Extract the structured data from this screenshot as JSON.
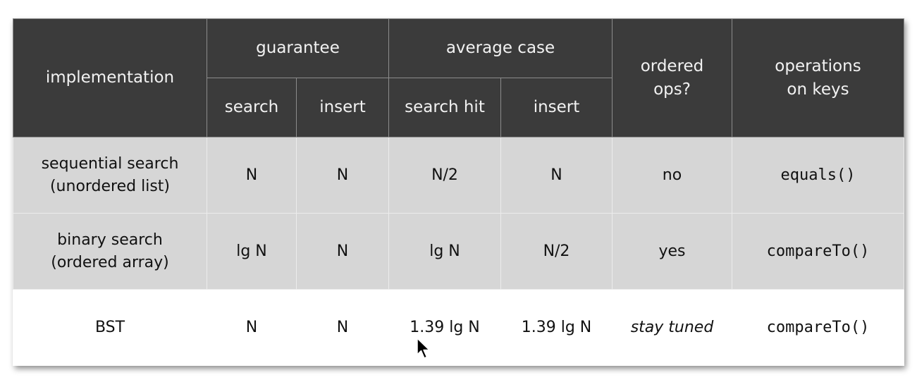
{
  "table": {
    "header": {
      "implementation": "implementation",
      "guarantee": "guarantee",
      "average_case": "average case",
      "ordered_ops": [
        "ordered",
        "ops?"
      ],
      "operations_on_keys": [
        "operations",
        "on keys"
      ],
      "sub": {
        "g_search": "search",
        "g_insert": "insert",
        "a_search_hit": "search hit",
        "a_insert": "insert"
      }
    },
    "rows": [
      {
        "implementation": [
          "sequential search",
          "(unordered list)"
        ],
        "g_search": "N",
        "g_insert": "N",
        "a_search_hit": "N/2",
        "a_insert": "N",
        "ordered_ops": "no",
        "operations": "equals()"
      },
      {
        "implementation": [
          "binary search",
          "(ordered array)"
        ],
        "g_search": "lg N",
        "g_insert": "N",
        "a_search_hit": "lg N",
        "a_insert": "N/2",
        "ordered_ops": "yes",
        "operations": "compareTo()"
      },
      {
        "implementation": [
          "BST"
        ],
        "g_search": "N",
        "g_insert": "N",
        "a_search_hit": "1.39 lg N",
        "a_insert": "1.39 lg N",
        "ordered_ops": "stay tuned",
        "operations": "compareTo()"
      }
    ]
  },
  "colors": {
    "header_bg": "#3b3b3b",
    "header_text": "#f2f2f2",
    "row_gray": "#d6d6d6",
    "row_white": "#ffffff"
  },
  "icons": {
    "cursor": "mouse-pointer-arrow-icon"
  }
}
